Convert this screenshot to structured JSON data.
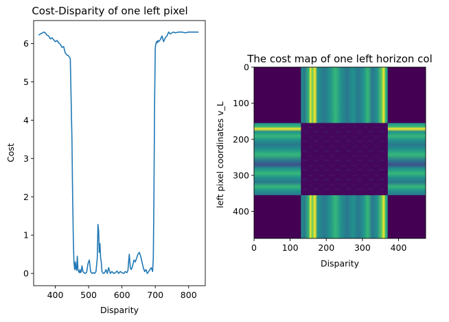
{
  "chart_data": [
    {
      "type": "line",
      "title": "Cost-Disparity of one left pixel",
      "xlabel": "Disparity",
      "ylabel": "Cost",
      "xlim": [
        335,
        850
      ],
      "ylim": [
        -0.32,
        6.6
      ],
      "xticks": [
        400,
        500,
        600,
        700,
        800
      ],
      "yticks": [
        0,
        1,
        2,
        3,
        4,
        5,
        6
      ],
      "color": "#1f77b4",
      "series": [
        {
          "x": [
            350,
            355,
            360,
            365,
            370,
            375,
            380,
            385,
            390,
            395,
            400,
            405,
            410,
            415,
            420,
            425,
            430,
            435,
            440,
            445,
            450,
            452,
            454,
            456,
            458,
            460,
            462,
            464,
            466,
            468,
            470,
            472,
            474,
            476,
            478,
            480,
            483,
            486,
            490,
            494,
            498,
            502,
            506,
            510,
            514,
            518,
            522,
            526,
            528,
            530,
            532,
            534,
            536,
            538,
            540,
            544,
            548,
            552,
            556,
            560,
            565,
            570,
            575,
            580,
            585,
            590,
            595,
            600,
            605,
            610,
            615,
            618,
            620,
            622,
            625,
            628,
            632,
            636,
            640,
            644,
            648,
            652,
            656,
            660,
            664,
            668,
            672,
            676,
            680,
            684,
            688,
            692,
            694,
            696,
            698,
            700,
            702,
            704,
            706,
            708,
            710,
            715,
            720,
            725,
            730,
            735,
            740,
            745,
            750,
            755,
            760,
            770,
            780,
            790,
            800,
            810,
            820,
            830
          ],
          "y": [
            6.22,
            6.25,
            6.27,
            6.3,
            6.28,
            6.22,
            6.2,
            6.12,
            6.15,
            6.1,
            6.05,
            6.08,
            6.02,
            5.98,
            5.9,
            5.92,
            5.75,
            5.7,
            5.68,
            5.6,
            3.5,
            2.0,
            0.9,
            0.3,
            0.1,
            0.3,
            0.12,
            0.08,
            0.45,
            0.1,
            0.05,
            0.02,
            0.1,
            0.02,
            0.05,
            0.2,
            0.05,
            0.02,
            0.0,
            0.03,
            0.25,
            0.35,
            0.05,
            0.0,
            0.02,
            0.0,
            0.05,
            0.4,
            1.28,
            1.1,
            0.55,
            0.78,
            0.4,
            0.3,
            0.05,
            0.0,
            0.02,
            0.1,
            0.0,
            0.15,
            0.0,
            0.05,
            0.0,
            0.02,
            0.06,
            0.0,
            0.05,
            0.02,
            0.0,
            0.05,
            0.02,
            0.08,
            0.3,
            0.5,
            0.15,
            0.1,
            0.2,
            0.35,
            0.3,
            0.4,
            0.5,
            0.55,
            0.45,
            0.3,
            0.15,
            0.05,
            0.1,
            0.0,
            0.05,
            0.1,
            0.15,
            0.05,
            0.4,
            2.0,
            4.5,
            5.9,
            6.0,
            6.05,
            6.02,
            6.08,
            6.05,
            6.1,
            6.2,
            6.05,
            6.15,
            6.2,
            6.3,
            6.25,
            6.28,
            6.3,
            6.28,
            6.3,
            6.3,
            6.28,
            6.3,
            6.3,
            6.3,
            6.3
          ]
        }
      ]
    },
    {
      "type": "heatmap",
      "title": "The cost map of one left horizon col",
      "xlabel": "Disparity",
      "ylabel": "left pixel coordinates  v_L",
      "xlim": [
        0,
        475
      ],
      "ylim": [
        475,
        0
      ],
      "xticks": [
        0,
        100,
        200,
        300,
        400
      ],
      "yticks": [
        0,
        100,
        200,
        300,
        400
      ],
      "colormap": "viridis",
      "colors": {
        "background": "#440154",
        "dark_purple": "#46085c",
        "deep_blue": "#3b528b",
        "teal": "#21918c",
        "green": "#35b779",
        "yellow": "#fde725"
      },
      "regions": {
        "bright_columns": [
          130,
          370
        ],
        "bright_rows": [
          155,
          355
        ]
      }
    }
  ]
}
